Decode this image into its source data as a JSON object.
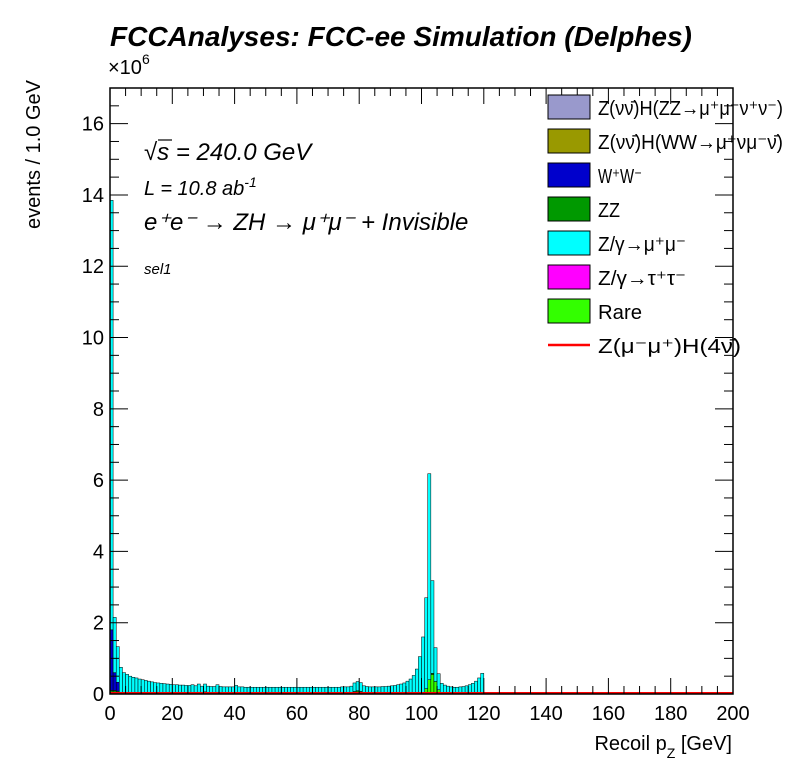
{
  "chart_data": {
    "type": "bar",
    "title": "FCCAnalyses: FCC-ee Simulation (Delphes)",
    "xlabel": "Recoil p",
    "xlabel_sub": "Z",
    "xlabel_unit": " [GeV]",
    "ylabel": "events / 1.0 GeV",
    "y_multiplier_prefix": "×10",
    "y_multiplier_exp": "6",
    "xlim": [
      0,
      200
    ],
    "ylim": [
      0,
      17
    ],
    "scale": 1000000,
    "bin_width": 1.0,
    "x_ticks": [
      0,
      20,
      40,
      60,
      80,
      100,
      120,
      140,
      160,
      180,
      200
    ],
    "y_ticks": [
      0,
      2,
      4,
      6,
      8,
      10,
      12,
      14,
      16
    ],
    "annotations": {
      "sqrts_prefix": "√",
      "sqrts_text": "s = 240.0 GeV",
      "lumi_text": "L = 10.8 ab",
      "lumi_exp": "-1",
      "process_text": "e⁺e⁻ → ZH → μ⁺μ⁻ + Invisible",
      "selection": "sel1"
    },
    "legend_position": "top-right",
    "legend": [
      {
        "label": "Z(νν̄)H(ZZ→μ⁺μ⁻ν⁺ν⁻)",
        "color": "#9999cc",
        "kind": "fill"
      },
      {
        "label": "Z(νν̄)H(WW→μ⁺νμ⁻ν̄)",
        "color": "#999900",
        "kind": "fill"
      },
      {
        "label": "W⁺W⁻",
        "color": "#0000cc",
        "kind": "fill"
      },
      {
        "label": "ZZ",
        "color": "#009900",
        "kind": "fill"
      },
      {
        "label": "Z/γ→μ⁺μ⁻",
        "color": "#00ffff",
        "kind": "fill"
      },
      {
        "label": "Z/γ→τ⁺τ⁻",
        "color": "#ff00ff",
        "kind": "fill"
      },
      {
        "label": "Rare",
        "color": "#33ff00",
        "kind": "fill"
      },
      {
        "label": "Z(μ⁻μ⁺)H(4ν̄)",
        "color": "#ff0000",
        "kind": "line"
      }
    ],
    "series": [
      {
        "name": "Rare",
        "color": "#33ff00",
        "bins": [
          {
            "x": 0,
            "y": 0.05
          },
          {
            "x": 1,
            "y": 0.05
          },
          {
            "x": 2,
            "y": 0.04
          },
          {
            "x": 101,
            "y": 0.15
          },
          {
            "x": 102,
            "y": 0.4
          },
          {
            "x": 103,
            "y": 0.55
          },
          {
            "x": 104,
            "y": 0.35
          },
          {
            "x": 105,
            "y": 0.12
          }
        ]
      },
      {
        "name": "ZZ",
        "color": "#009900",
        "bins": [
          {
            "x": 0,
            "y": 0.05
          },
          {
            "x": 1,
            "y": 0.05
          },
          {
            "x": 2,
            "y": 0.04
          },
          {
            "x": 26,
            "y": 0.03
          },
          {
            "x": 28,
            "y": 0.05
          },
          {
            "x": 30,
            "y": 0.06
          },
          {
            "x": 34,
            "y": 0.05
          },
          {
            "x": 40,
            "y": 0.04
          },
          {
            "x": 78,
            "y": 0.07
          },
          {
            "x": 79,
            "y": 0.09
          },
          {
            "x": 80,
            "y": 0.07
          },
          {
            "x": 103,
            "y": 0.03
          }
        ]
      },
      {
        "name": "W⁺W⁻",
        "color": "#0000cc",
        "bins": [
          {
            "x": 0,
            "y": 1.7
          },
          {
            "x": 1,
            "y": 0.5
          },
          {
            "x": 2,
            "y": 0.25
          }
        ]
      },
      {
        "name": "Z/γ→μ⁺μ⁻",
        "color": "#00ffff",
        "bins_y": [
          12.05,
          1.55,
          1.0,
          0.75,
          0.6,
          0.55,
          0.5,
          0.47,
          0.45,
          0.42,
          0.4,
          0.38,
          0.36,
          0.34,
          0.32,
          0.31,
          0.3,
          0.29,
          0.28,
          0.27,
          0.26,
          0.26,
          0.25,
          0.25,
          0.24,
          0.24,
          0.23,
          0.23,
          0.23,
          0.22,
          0.22,
          0.22,
          0.21,
          0.21,
          0.21,
          0.21,
          0.2,
          0.2,
          0.2,
          0.2,
          0.2,
          0.2,
          0.2,
          0.19,
          0.19,
          0.19,
          0.19,
          0.19,
          0.19,
          0.19,
          0.19,
          0.19,
          0.19,
          0.19,
          0.19,
          0.19,
          0.19,
          0.19,
          0.19,
          0.19,
          0.19,
          0.19,
          0.19,
          0.19,
          0.19,
          0.19,
          0.19,
          0.19,
          0.19,
          0.19,
          0.19,
          0.19,
          0.19,
          0.19,
          0.2,
          0.2,
          0.2,
          0.22,
          0.24,
          0.26,
          0.25,
          0.23,
          0.21,
          0.2,
          0.2,
          0.2,
          0.2,
          0.21,
          0.21,
          0.22,
          0.23,
          0.24,
          0.26,
          0.28,
          0.31,
          0.36,
          0.42,
          0.52,
          0.7,
          1.05,
          1.6,
          2.55,
          5.78,
          2.6,
          0.95,
          0.45,
          0.3,
          0.25,
          0.22,
          0.2,
          0.19,
          0.19,
          0.2,
          0.21,
          0.23,
          0.26,
          0.3,
          0.36,
          0.45,
          0.58,
          0.0
        ]
      },
      {
        "name": "Z(μ⁻μ⁺)H(4ν̄)",
        "color": "#ff0000",
        "kind": "line",
        "value": 0.0
      }
    ]
  }
}
